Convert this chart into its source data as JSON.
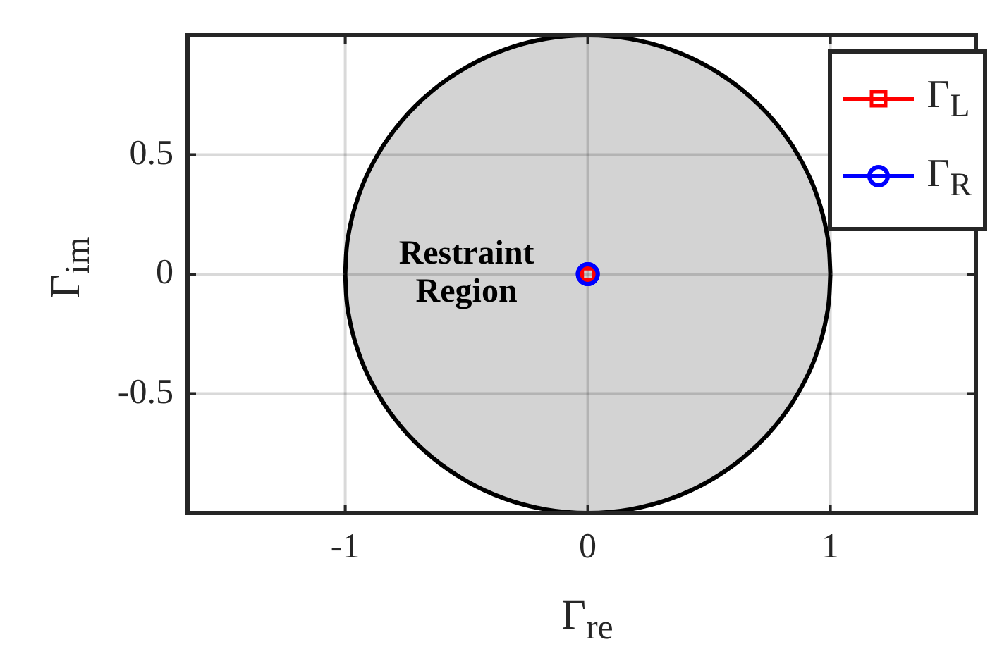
{
  "chart_data": {
    "type": "line",
    "xlabel": "Γ$_{re}$",
    "ylabel": "Γ$_{im}$",
    "xlim": [
      -1.65,
      1.6
    ],
    "ylim": [
      -1,
      1
    ],
    "xticks": [
      -1,
      0,
      1
    ],
    "yticks": [
      -0.5,
      0,
      0.5
    ],
    "grid": true,
    "legend": "top right",
    "annotations": [
      {
        "text": "Restraint Region",
        "x": -0.5,
        "y": 0
      }
    ],
    "series": [
      {
        "type": "area",
        "color": "#d3d3d3",
        "x": [
          -1,
          -0.996,
          -0.985,
          -0.94,
          -0.866,
          -0.766,
          -0.643,
          -0.5,
          -0.342,
          -0.174,
          0,
          0.174,
          0.342,
          0.5,
          0.643,
          0.766,
          0.866,
          0.94,
          0.985,
          0.996,
          1
        ],
        "values": [
          0,
          0.087,
          0.174,
          0.342,
          0.5,
          0.643,
          0.766,
          0.866,
          0.94,
          0.985,
          1,
          0.985,
          0.94,
          0.866,
          0.766,
          0.643,
          0.5,
          0.342,
          0.174,
          0.087,
          0
        ]
      },
      {
        "type": "area",
        "color": "#d3d3d3",
        "x": [
          -1,
          -0.996,
          -0.985,
          -0.94,
          -0.866,
          -0.766,
          -0.643,
          -0.5,
          -0.342,
          -0.174,
          0,
          0.174,
          0.342,
          0.5,
          0.643,
          0.766,
          0.866,
          0.94,
          0.985,
          0.996,
          1
        ],
        "values": [
          0,
          -0.087,
          -0.174,
          -0.342,
          -0.5,
          -0.643,
          -0.766,
          -0.866,
          -0.94,
          -0.985,
          -1,
          -0.985,
          -0.94,
          -0.866,
          -0.766,
          -0.643,
          -0.5,
          -0.342,
          -0.174,
          -0.087,
          0
        ]
      },
      {
        "type": "line",
        "name": "Γ$_{L}$",
        "color": "#ff0000",
        "marker": "square",
        "x": [
          0
        ],
        "values": [
          0
        ]
      },
      {
        "type": "line",
        "name": "Γ$_{R}$",
        "color": "#0000ff",
        "marker": "circle",
        "x": [
          0
        ],
        "values": [
          0
        ]
      }
    ]
  }
}
